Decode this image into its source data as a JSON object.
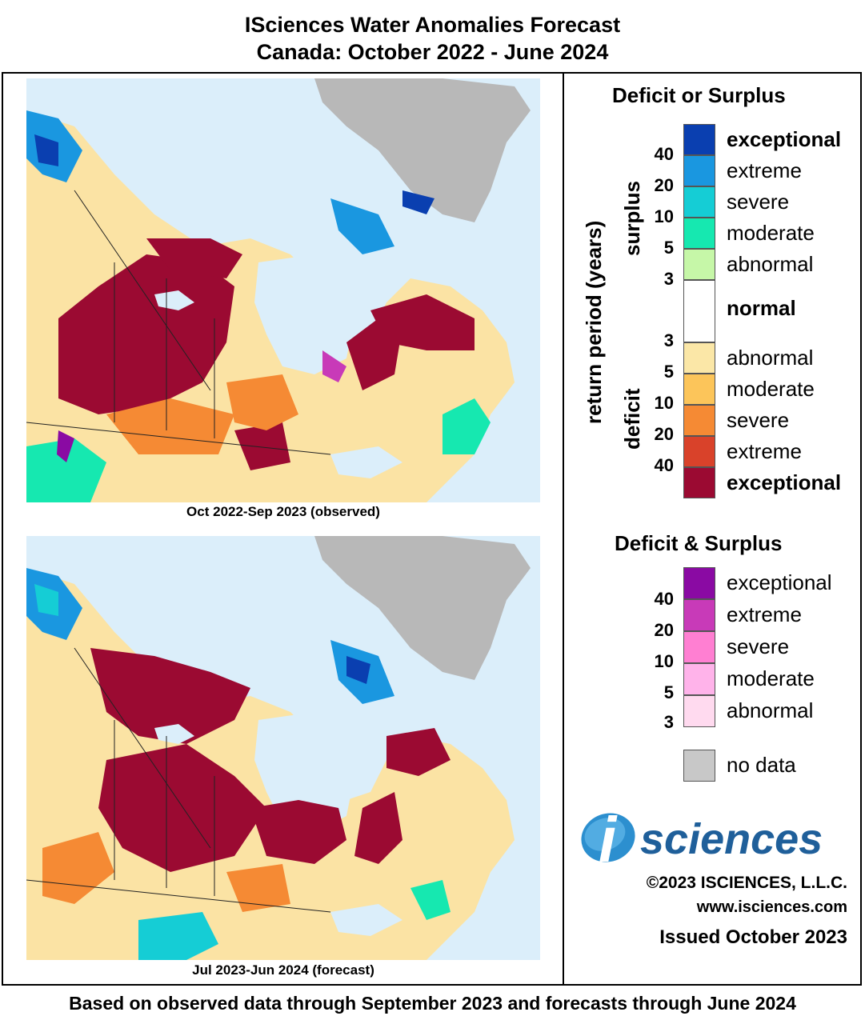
{
  "title_line1": "ISciences Water Anomalies Forecast",
  "title_line2": "Canada: October 2022 - June 2024",
  "maps": [
    {
      "caption": "Oct 2022-Sep 2023 (observed)"
    },
    {
      "caption": "Jul 2023-Jun 2024 (forecast)"
    }
  ],
  "legend": {
    "title1": "Deficit or Surplus",
    "axis_label": "return period (years)",
    "surplus_label": "surplus",
    "deficit_label": "deficit",
    "classes": [
      {
        "label": "exceptional",
        "color": "#0a3fb0",
        "bold": true
      },
      {
        "label": "extreme",
        "color": "#1a97e0"
      },
      {
        "label": "severe",
        "color": "#15cdd5"
      },
      {
        "label": "moderate",
        "color": "#16e8b0"
      },
      {
        "label": "abnormal",
        "color": "#c6f7a8"
      },
      {
        "label": "normal",
        "color": "#ffffff",
        "bold": true
      },
      {
        "label": "abnormal",
        "color": "#fbe7a7"
      },
      {
        "label": "moderate",
        "color": "#fcc55a"
      },
      {
        "label": "severe",
        "color": "#f58a34"
      },
      {
        "label": "extreme",
        "color": "#d9422a"
      },
      {
        "label": "exceptional",
        "color": "#9b0a32",
        "bold": true
      }
    ],
    "ticks_surplus": [
      "40",
      "20",
      "10",
      "5",
      "3"
    ],
    "ticks_deficit": [
      "3",
      "5",
      "10",
      "20",
      "40"
    ],
    "title2": "Deficit & Surplus",
    "combined": [
      {
        "label": "exceptional",
        "color": "#8a0aa3"
      },
      {
        "label": "extreme",
        "color": "#c83ab8"
      },
      {
        "label": "severe",
        "color": "#ff7fd2"
      },
      {
        "label": "moderate",
        "color": "#ffb3ea"
      },
      {
        "label": "abnormal",
        "color": "#ffdaef"
      }
    ],
    "ticks_combined": [
      "40",
      "20",
      "10",
      "5",
      "3"
    ],
    "no_data_label": "no data",
    "no_data_color": "#c8c8c8"
  },
  "logo_text": "sciences",
  "logo_letter": "i",
  "copyright": "©2023 ISCIENCES, L.L.C.",
  "website": "www.isciences.com",
  "issued": "Issued October 2023",
  "footer": "Based on observed data through September 2023 and forecasts through June 2024"
}
